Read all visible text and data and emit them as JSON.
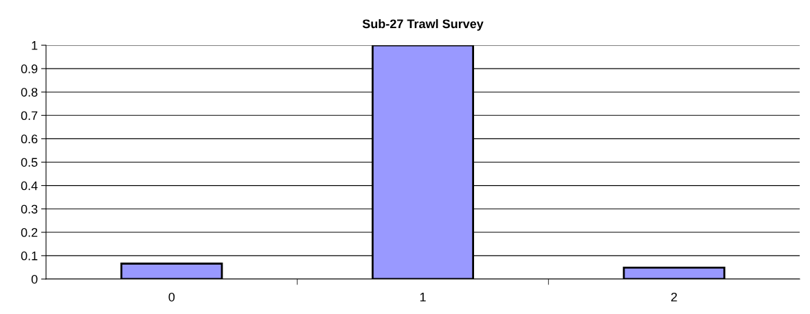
{
  "chart_data": {
    "type": "bar",
    "title": "Sub-27 Trawl Survey",
    "categories": [
      "0",
      "1",
      "2"
    ],
    "values": [
      0.066,
      1.0,
      0.049
    ],
    "color": "#9999ff",
    "ylim": [
      0,
      1
    ],
    "yticks": [
      0,
      0.1,
      0.2,
      0.3,
      0.4,
      0.5,
      0.6,
      0.7,
      0.8,
      0.9,
      1
    ],
    "grid": "y"
  }
}
